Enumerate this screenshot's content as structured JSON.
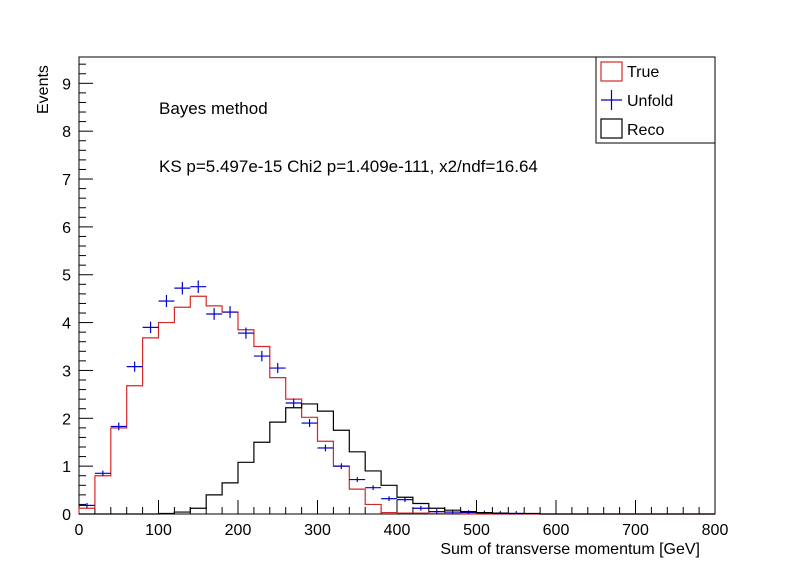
{
  "chart_data": {
    "type": "histogram",
    "xlabel": "Sum of transverse momentum [GeV]",
    "ylabel": "Events",
    "xlim": [
      0,
      800
    ],
    "ylim": [
      0,
      9.55
    ],
    "x_ticks": [
      "0",
      "100",
      "200",
      "300",
      "400",
      "500",
      "600",
      "700",
      "800"
    ],
    "y_ticks": [
      "0",
      "1",
      "2",
      "3",
      "4",
      "5",
      "6",
      "7",
      "8",
      "9"
    ],
    "annotations": [
      "Bayes method",
      "KS p=5.497e-15 Chi2 p=1.409e-111, x2/ndf=16.64"
    ],
    "legend": {
      "position": "top-right",
      "entries": [
        "True",
        "Unfold",
        "Reco"
      ]
    },
    "bin_width": 20,
    "bin_edges_start": 0,
    "series": [
      {
        "name": "True",
        "style": "step",
        "color": "#d62728",
        "values": [
          0.12,
          0.8,
          1.8,
          2.68,
          3.68,
          4.0,
          4.32,
          4.55,
          4.35,
          4.22,
          3.85,
          3.5,
          2.85,
          2.4,
          2.02,
          1.52,
          1.0,
          0.52,
          0.2,
          0.03,
          0.02,
          0.02,
          0.01,
          0.01,
          0.0,
          0.0,
          0.0,
          0.0,
          0.0,
          0.0,
          0.0,
          0.0,
          0.0,
          0.0,
          0.0,
          0.0,
          0.0,
          0.0,
          0.0,
          0.0
        ]
      },
      {
        "name": "Unfold",
        "style": "errorbar",
        "color": "#0000cc",
        "values": [
          0.18,
          0.85,
          1.83,
          3.08,
          3.9,
          4.45,
          4.72,
          4.75,
          4.18,
          4.22,
          3.78,
          3.3,
          3.05,
          2.32,
          1.9,
          1.38,
          1.0,
          0.72,
          0.55,
          0.32,
          0.3,
          0.12,
          0.05,
          0.04,
          0.03,
          0.02,
          0.01,
          0.01,
          0.0,
          0.0,
          0.0,
          0.0,
          0.0,
          0.0,
          0.0,
          0.0,
          0.0,
          0.0,
          0.0,
          0.0
        ]
      },
      {
        "name": "Reco",
        "style": "step",
        "color": "#000000",
        "values": [
          0.0,
          0.0,
          0.0,
          0.0,
          0.0,
          0.01,
          0.04,
          0.12,
          0.4,
          0.65,
          1.08,
          1.5,
          1.92,
          2.22,
          2.3,
          2.15,
          1.75,
          1.3,
          0.9,
          0.6,
          0.35,
          0.22,
          0.12,
          0.08,
          0.05,
          0.03,
          0.02,
          0.01,
          0.01,
          0.0,
          0.0,
          0.0,
          0.0,
          0.0,
          0.0,
          0.0,
          0.0,
          0.0,
          0.0,
          0.0
        ]
      }
    ]
  }
}
